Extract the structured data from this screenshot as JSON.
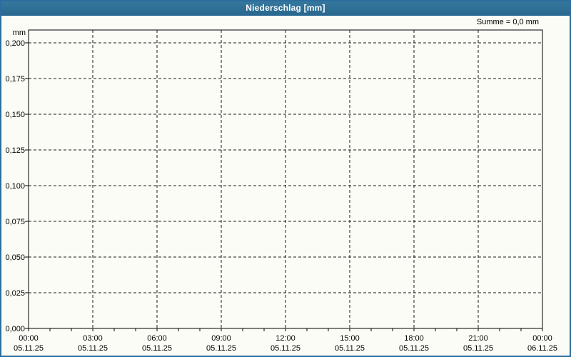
{
  "window": {
    "title": "Niederschlag [mm]"
  },
  "summary": {
    "text": "Summe = 0,0 mm"
  },
  "colors": {
    "titlebar": "#2b6d9e",
    "border": "#2b6d9e",
    "title_text": "#ffffff",
    "text": "#000000",
    "grid": "#1a1a1a",
    "axis": "#000000",
    "background": "#fcfcf7"
  },
  "chart_data": {
    "type": "line",
    "title": "Niederschlag [mm]",
    "unit_label": "mm",
    "xlabel": "",
    "ylabel": "mm",
    "ylim": [
      0,
      0.209
    ],
    "y_tick_step": 0.025,
    "y_ticks": [
      {
        "value": 0.0,
        "label": "0,000"
      },
      {
        "value": 0.025,
        "label": "0,025"
      },
      {
        "value": 0.05,
        "label": "0,050"
      },
      {
        "value": 0.075,
        "label": "0,075"
      },
      {
        "value": 0.1,
        "label": "0,100"
      },
      {
        "value": 0.125,
        "label": "0,125"
      },
      {
        "value": 0.15,
        "label": "0,150"
      },
      {
        "value": 0.175,
        "label": "0,175"
      },
      {
        "value": 0.2,
        "label": "0,200"
      }
    ],
    "xlim_hours": [
      0,
      24
    ],
    "x_minor_tick_hours": 1,
    "x_major_tick_hours": 3,
    "x_ticks": [
      {
        "hour": 0,
        "time": "00:00",
        "date": "05.11.25"
      },
      {
        "hour": 3,
        "time": "03:00",
        "date": "05.11.25"
      },
      {
        "hour": 6,
        "time": "06:00",
        "date": "05.11.25"
      },
      {
        "hour": 9,
        "time": "09:00",
        "date": "05.11.25"
      },
      {
        "hour": 12,
        "time": "12:00",
        "date": "05.11.25"
      },
      {
        "hour": 15,
        "time": "15:00",
        "date": "05.11.25"
      },
      {
        "hour": 18,
        "time": "18:00",
        "date": "05.11.25"
      },
      {
        "hour": 21,
        "time": "21:00",
        "date": "05.11.25"
      },
      {
        "hour": 24,
        "time": "00:00",
        "date": "06.11.25"
      }
    ],
    "grid": "dashed",
    "legend": null,
    "series": [],
    "annotations": [
      "Summe = 0,0 mm"
    ]
  }
}
